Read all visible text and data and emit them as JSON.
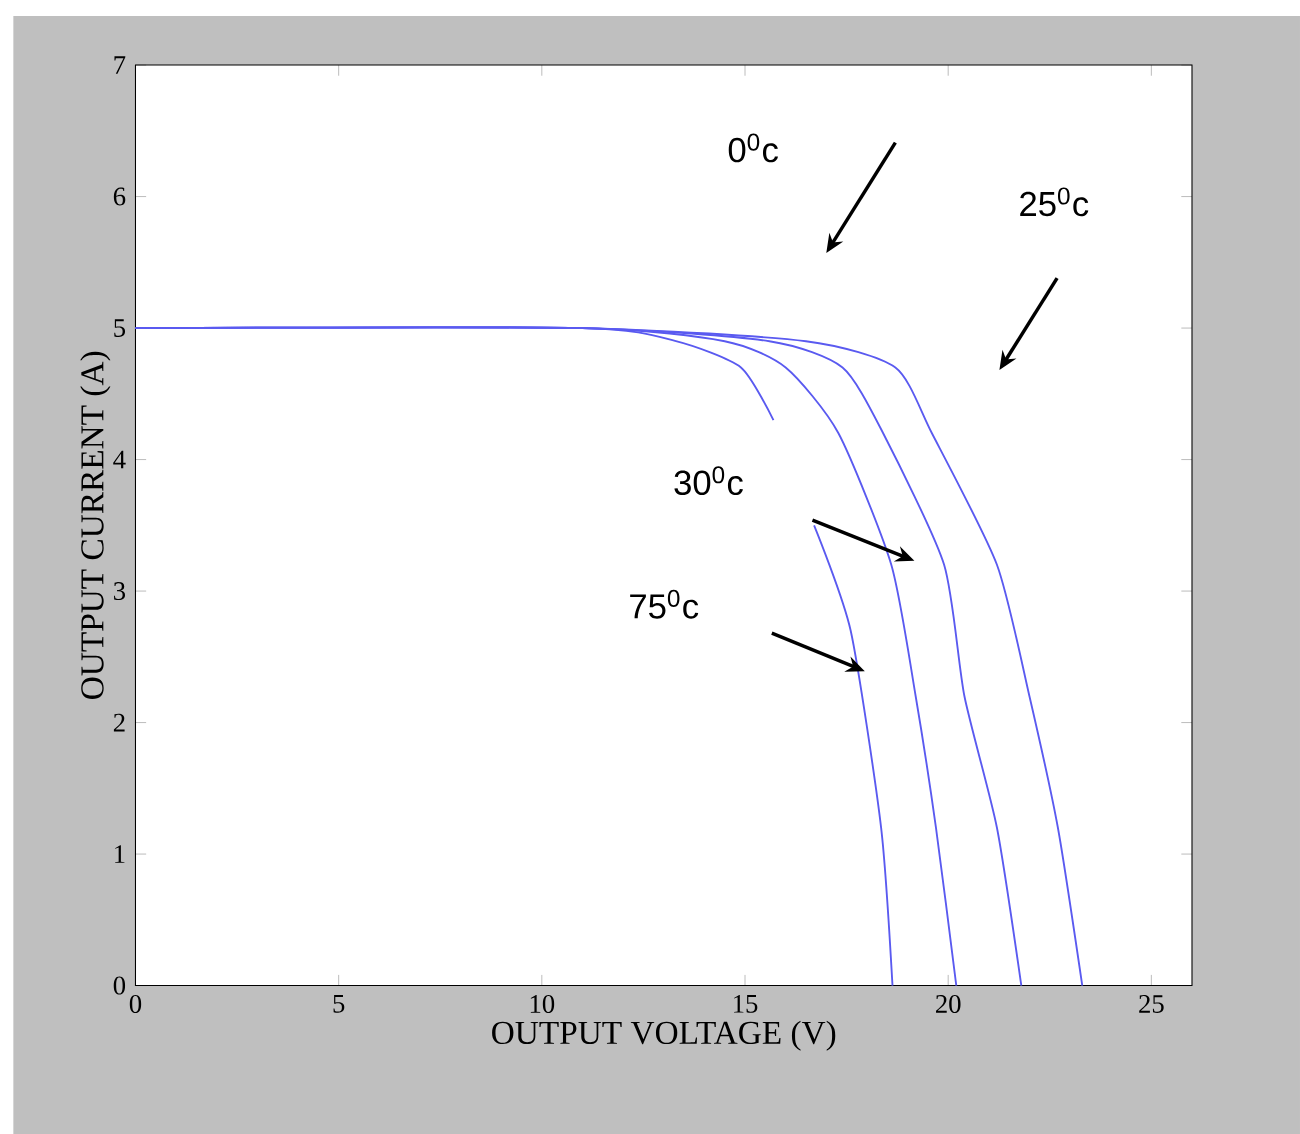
{
  "chart_data": {
    "type": "line",
    "xlabel": "OUTPUT VOLTAGE (V)",
    "ylabel": "OUTPUT CURRENT (A)",
    "xlim": [
      0,
      26
    ],
    "ylim": [
      0,
      7
    ],
    "xticks": [
      0,
      5,
      10,
      15,
      20,
      25
    ],
    "yticks": [
      0,
      1,
      2,
      3,
      4,
      5,
      6,
      7
    ],
    "grid": false,
    "marker": "none",
    "line_style": "solid",
    "series": [
      {
        "color": "#5a5af0",
        "x": [
          0,
          11,
          13.3,
          14.9,
          15.7,
          16.2,
          16.7,
          17.6,
          18.35,
          18.63
        ],
        "values": [
          5,
          5,
          4.9,
          4.7,
          4.3,
          null,
          3.5,
          2.7,
          1.2,
          0
        ]
      },
      {
        "color": "#5a5af0",
        "x": [
          0,
          11,
          14.5,
          16.0,
          17.3,
          18.6,
          19.2,
          19.7,
          20.2
        ],
        "values": [
          5,
          5,
          4.9,
          4.7,
          4.2,
          3.2,
          2.2,
          1.2,
          0
        ]
      },
      {
        "color": "#5a5af0",
        "x": [
          0,
          11,
          15.6,
          17.4,
          18.4,
          19.9,
          20.4,
          21.2,
          21.8
        ],
        "values": [
          5,
          5,
          4.9,
          4.7,
          4.2,
          3.2,
          2.2,
          1.2,
          0
        ]
      },
      {
        "color": "#5a5af0",
        "x": [
          0,
          11,
          16.5,
          18.7,
          19.6,
          21.2,
          22.0,
          22.7,
          23.3
        ],
        "values": [
          5,
          5,
          4.9,
          4.7,
          4.2,
          3.2,
          2.2,
          1.2,
          0
        ]
      }
    ],
    "annotations": [
      "0$^{0}$c",
      "25$^{0}$c",
      "30$^{0}$c",
      "75$^{0}$c"
    ]
  }
}
